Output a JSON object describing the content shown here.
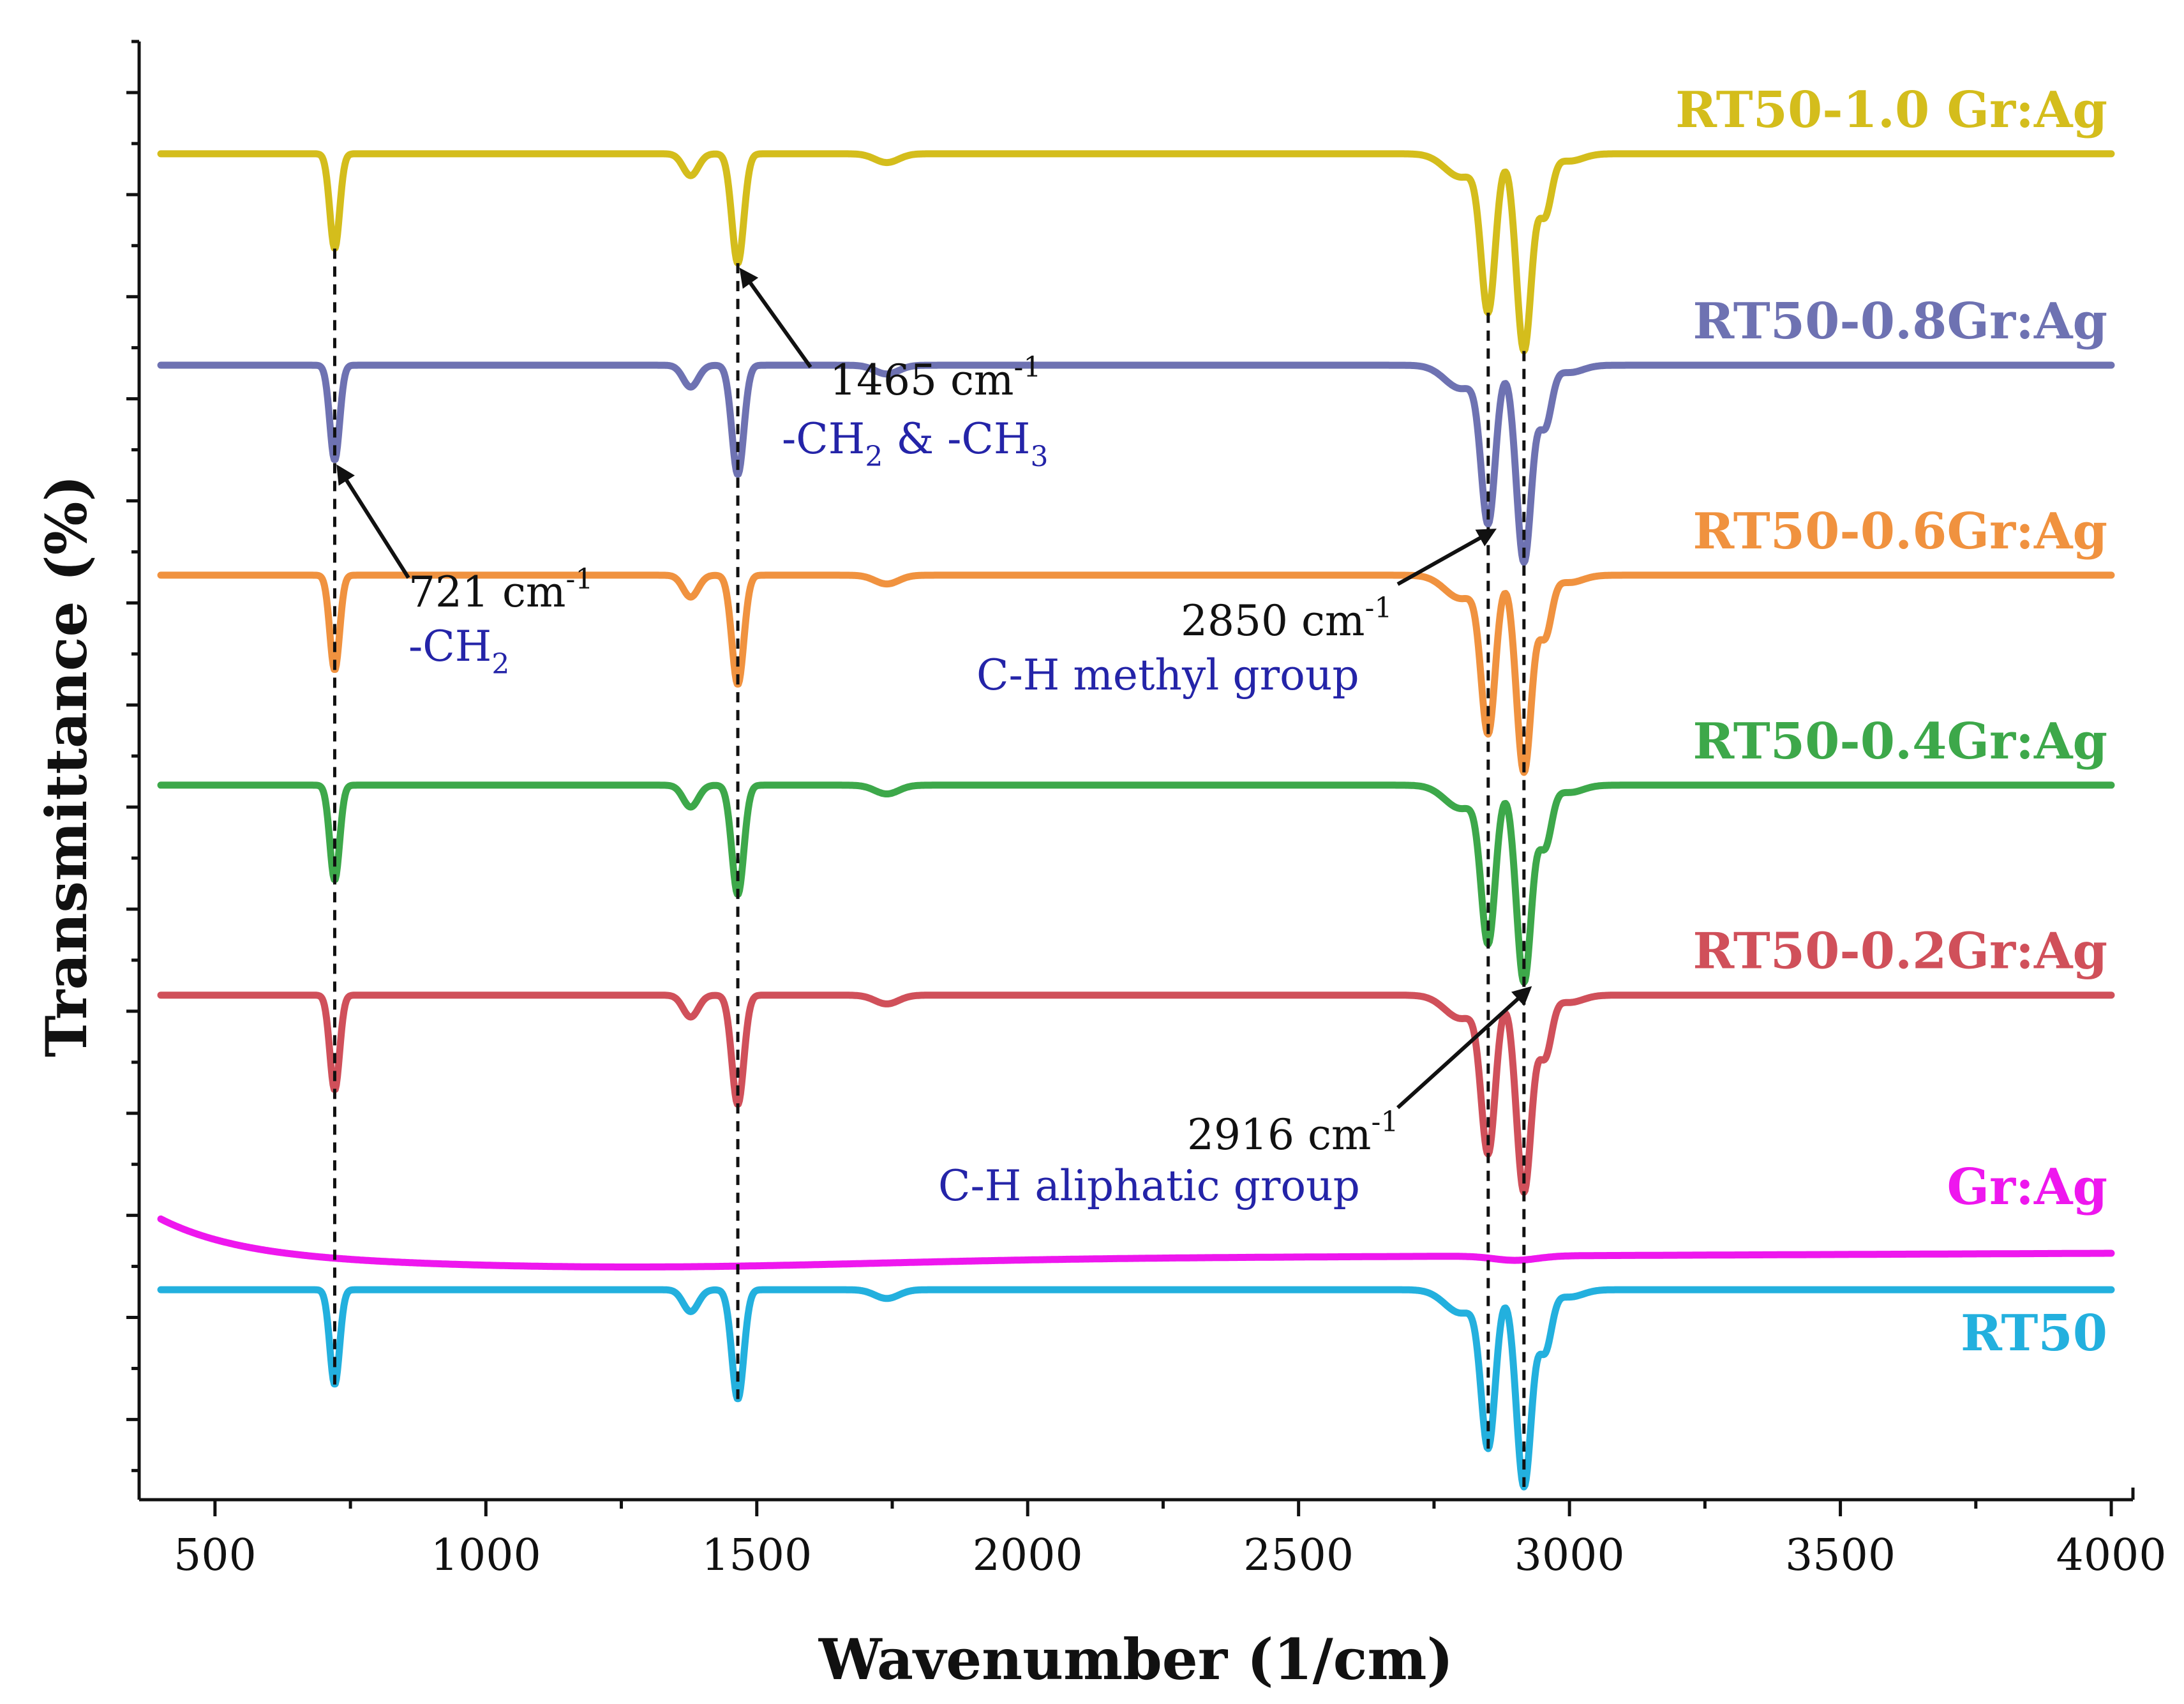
{
  "chart_data": {
    "type": "line",
    "title": "",
    "xlabel": "Wavenumber (1/cm)",
    "ylabel": "Transmittance (%)",
    "xlim": [
      360,
      4040
    ],
    "ylim": [
      0,
      100
    ],
    "x_ticks": [
      500,
      1000,
      1500,
      2000,
      2500,
      3000,
      3500,
      4000
    ],
    "x_tick_labels": [
      "500",
      "1000",
      "1500",
      "2000",
      "2500",
      "3000",
      "3500",
      "4000"
    ],
    "grid": false,
    "legend": "inline labels at right end of each trace",
    "peaks": [
      721,
      1465,
      2850,
      2916
    ],
    "series": [
      {
        "name": "RT50-1.0 Gr:Ag",
        "color": "#d4bd1c",
        "baseline": 92.3,
        "kind": "rt50"
      },
      {
        "name": "RT50-0.8Gr:Ag",
        "color": "#6e72b2",
        "baseline": 77.8,
        "kind": "rt50"
      },
      {
        "name": "RT50-0.6Gr:Ag",
        "color": "#f0923f",
        "baseline": 63.4,
        "kind": "rt50"
      },
      {
        "name": "RT50-0.4Gr:Ag",
        "color": "#3da84a",
        "baseline": 49.0,
        "kind": "rt50"
      },
      {
        "name": "RT50-0.2Gr:Ag",
        "color": "#d0505a",
        "baseline": 34.6,
        "kind": "rt50"
      },
      {
        "name": "Gr:Ag",
        "color": "#ee17ee",
        "baseline": 18.6,
        "kind": "grag"
      },
      {
        "name": "RT50",
        "color": "#23b0de",
        "baseline": 14.4,
        "kind": "rt50"
      }
    ],
    "annotations": [
      {
        "text": "721 cm",
        "sup": "-1",
        "group": "-CH",
        "group_sub": "2",
        "group_tail": "",
        "peak": 721
      },
      {
        "text": "1465 cm",
        "sup": "-1",
        "group": "-CH",
        "group_sub": "2",
        "group_tail": " & -CH",
        "group_sub2": "3",
        "peak": 1465
      },
      {
        "text": "2850 cm",
        "sup": "-1",
        "group": "C-H methyl group",
        "peak": 2850
      },
      {
        "text": "2916 cm",
        "sup": "-1",
        "group": "C-H aliphatic group",
        "peak": 2916
      }
    ]
  },
  "colors": {
    "axis": "#111111",
    "annotation_group": "#2424a8",
    "annotation_value": "#111111",
    "dash": "#111111"
  }
}
